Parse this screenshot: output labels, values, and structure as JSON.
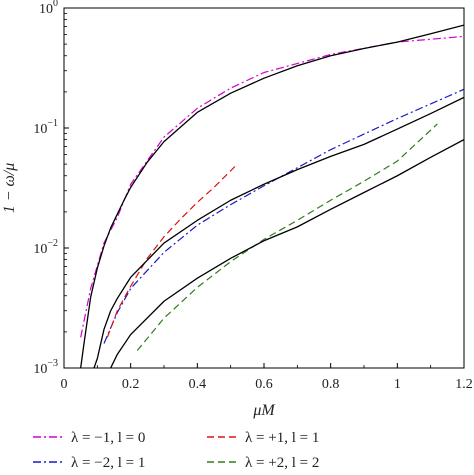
{
  "chart_data": {
    "type": "line",
    "xlabel": "μM",
    "ylabel": "1 − ω/μ",
    "xlim": [
      0,
      1.2
    ],
    "ylim": [
      0.001,
      1
    ],
    "yscale": "log",
    "grid": false,
    "legend_position": "bottom",
    "x_ticks": [
      {
        "value": 0,
        "label": "0"
      },
      {
        "value": 0.2,
        "label": "0.2"
      },
      {
        "value": 0.4,
        "label": "0.4"
      },
      {
        "value": 0.6,
        "label": "0.6"
      },
      {
        "value": 0.8,
        "label": "0.8"
      },
      {
        "value": 1.0,
        "label": "1"
      },
      {
        "value": 1.2,
        "label": "1.2"
      }
    ],
    "y_ticks": [
      {
        "value": 0.001,
        "base": "10",
        "exp": "−3"
      },
      {
        "value": 0.01,
        "base": "10",
        "exp": "−2"
      },
      {
        "value": 0.1,
        "base": "10",
        "exp": "−1"
      },
      {
        "value": 1,
        "base": "10",
        "exp": "0"
      }
    ],
    "series": [
      {
        "name": "λ = −1, l = 0",
        "color": "#d400d4",
        "dash": "dashdot",
        "x": [
          0.05,
          0.08,
          0.12,
          0.16,
          0.2,
          0.3,
          0.4,
          0.5,
          0.6,
          0.8,
          1.0,
          1.2
        ],
        "y": [
          0.0018,
          0.0046,
          0.011,
          0.018,
          0.034,
          0.084,
          0.146,
          0.215,
          0.29,
          0.41,
          0.52,
          0.58
        ]
      },
      {
        "name": "λ = −2, l = 1",
        "color": "#1a1acc",
        "dash": "dashdot",
        "x": [
          0.12,
          0.16,
          0.2,
          0.3,
          0.4,
          0.5,
          0.6,
          0.8,
          1.0,
          1.2
        ],
        "y": [
          0.0016,
          0.0029,
          0.0046,
          0.0092,
          0.0155,
          0.023,
          0.033,
          0.066,
          0.12,
          0.21
        ]
      },
      {
        "name": "λ = +1, l = 1",
        "color": "#e01010",
        "dash": "dashed",
        "x": [
          0.13,
          0.16,
          0.2,
          0.25,
          0.3,
          0.35,
          0.4,
          0.45,
          0.52
        ],
        "y": [
          0.0018,
          0.003,
          0.0048,
          0.0082,
          0.0124,
          0.0175,
          0.024,
          0.032,
          0.05
        ]
      },
      {
        "name": "λ = +2, l = 2",
        "color": "#2e7d1a",
        "dash": "dashed",
        "x": [
          0.22,
          0.3,
          0.4,
          0.5,
          0.6,
          0.7,
          0.8,
          0.9,
          1.0,
          1.12
        ],
        "y": [
          0.0014,
          0.0026,
          0.0047,
          0.0077,
          0.0118,
          0.017,
          0.025,
          0.036,
          0.053,
          0.108
        ]
      },
      {
        "name": "",
        "color": "#000000",
        "dash": "solid",
        "x": [
          0.05,
          0.06,
          0.08,
          0.1,
          0.12,
          0.14,
          0.18,
          0.2,
          0.25,
          0.3,
          0.4,
          0.5,
          0.6,
          0.7,
          0.8,
          0.9,
          1.0,
          1.1,
          1.2
        ],
        "y": [
          0.001,
          0.0016,
          0.0039,
          0.0068,
          0.0104,
          0.0147,
          0.025,
          0.032,
          0.052,
          0.077,
          0.135,
          0.195,
          0.26,
          0.33,
          0.4,
          0.46,
          0.52,
          0.61,
          0.72
        ]
      },
      {
        "name": "",
        "color": "#000000",
        "dash": "solid",
        "x": [
          0.09,
          0.1,
          0.12,
          0.14,
          0.16,
          0.2,
          0.3,
          0.4,
          0.5,
          0.6,
          0.7,
          0.8,
          0.9,
          1.0,
          1.1,
          1.2
        ],
        "y": [
          0.001,
          0.0012,
          0.0021,
          0.003,
          0.0038,
          0.0057,
          0.011,
          0.017,
          0.025,
          0.034,
          0.045,
          0.058,
          0.073,
          0.098,
          0.132,
          0.18
        ]
      },
      {
        "name": "",
        "color": "#000000",
        "dash": "solid",
        "x": [
          0.14,
          0.16,
          0.2,
          0.3,
          0.4,
          0.5,
          0.6,
          0.7,
          0.8,
          0.9,
          1.0,
          1.1,
          1.2
        ],
        "y": [
          0.001,
          0.0013,
          0.0019,
          0.0036,
          0.0056,
          0.0082,
          0.0115,
          0.015,
          0.021,
          0.029,
          0.04,
          0.057,
          0.08
        ]
      }
    ]
  }
}
